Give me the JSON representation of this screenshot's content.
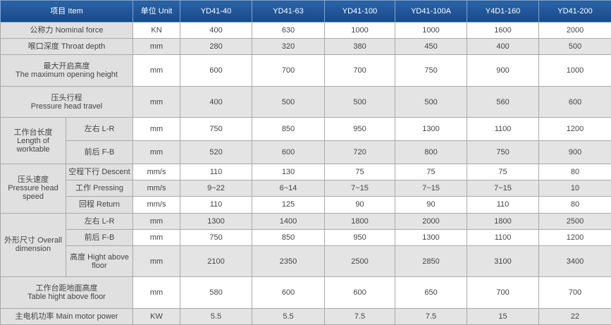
{
  "header": {
    "item": "项目 Item",
    "unit": "单位 Unit",
    "models": [
      "YD41-40",
      "YD41-63",
      "YD41-100",
      "YD41-100A",
      "Y4D1-160",
      "YD41-200"
    ]
  },
  "rows": [
    {
      "label": "公称力  Nominal force",
      "unit": "KN",
      "values": [
        "400",
        "630",
        "1000",
        "1000",
        "1600",
        "2000"
      ]
    },
    {
      "label": "喉口深度 Throat depth",
      "unit": "mm",
      "values": [
        "280",
        "320",
        "380",
        "450",
        "400",
        "500"
      ]
    },
    {
      "label": "最大开启高度",
      "label2": "The maximum opening height",
      "unit": "mm",
      "values": [
        "600",
        "700",
        "700",
        "750",
        "900",
        "1000"
      ]
    },
    {
      "label": "压头行程",
      "label2": "Pressure head travel",
      "unit": "mm",
      "values": [
        "400",
        "500",
        "500",
        "500",
        "560",
        "600"
      ]
    },
    {
      "group": "工作台长度 Length of worktable",
      "label": "左右 L-R",
      "unit": "mm",
      "values": [
        "750",
        "850",
        "950",
        "1300",
        "1100",
        "1200"
      ]
    },
    {
      "label": "前后 F-B",
      "unit": "mm",
      "values": [
        "520",
        "600",
        "720",
        "800",
        "750",
        "900"
      ]
    },
    {
      "group": "压头速度 Pressure head speed",
      "label": "空程下行 Descent",
      "unit": "mm/s",
      "values": [
        "110",
        "130",
        "75",
        "75",
        "75",
        "80"
      ]
    },
    {
      "label": "工作 Pressing",
      "unit": "mm/s",
      "values": [
        "9~22",
        "6~14",
        "7~15",
        "7~15",
        "7~15",
        "10"
      ]
    },
    {
      "label": "回程 Return",
      "unit": "mm/s",
      "values": [
        "110",
        "125",
        "90",
        "90",
        "110",
        "80"
      ]
    },
    {
      "group": "外形尺寸 Overall dimension",
      "label": "左右 L-R",
      "unit": "mm",
      "values": [
        "1300",
        "1400",
        "1800",
        "2000",
        "1800",
        "2500"
      ]
    },
    {
      "label": "前后 F-B",
      "unit": "mm",
      "values": [
        "750",
        "850",
        "950",
        "1300",
        "1100",
        "1200"
      ]
    },
    {
      "label": "高度 Hight above floor",
      "unit": "mm",
      "values": [
        "2100",
        "2350",
        "2500",
        "2850",
        "3100",
        "3400"
      ]
    },
    {
      "label": "工作台距地面高度",
      "label2": "Table hight above floor",
      "unit": "mm",
      "values": [
        "580",
        "600",
        "600",
        "650",
        "700",
        "700"
      ]
    },
    {
      "label": "主电机功率   Main motor power",
      "unit": "KW",
      "values": [
        "5.5",
        "5.5",
        "7.5",
        "7.5",
        "15",
        "22"
      ]
    }
  ]
}
